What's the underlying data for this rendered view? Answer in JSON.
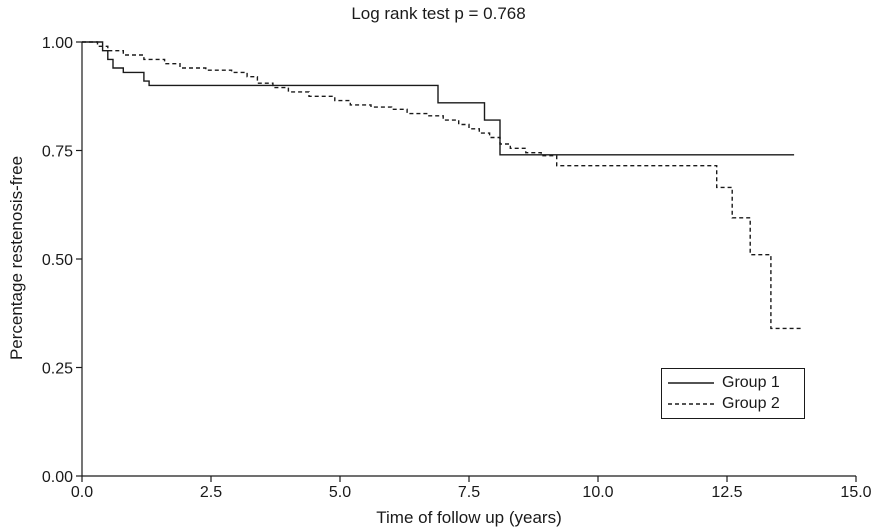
{
  "chart_data": {
    "type": "line",
    "title": "Log rank test p = 0.768",
    "xlabel": "Time of follow up (years)",
    "ylabel": "Percentage restenosis-free",
    "xlim": [
      0,
      15
    ],
    "ylim": [
      0,
      1
    ],
    "xticks": [
      "0.0",
      "2.5",
      "5.0",
      "7.5",
      "10.0",
      "12.5",
      "15.0"
    ],
    "xtick_values": [
      0,
      2.5,
      5,
      7.5,
      10,
      12.5,
      15
    ],
    "yticks": [
      "0.00",
      "0.25",
      "0.50",
      "0.75",
      "1.00"
    ],
    "ytick_values": [
      0,
      0.25,
      0.5,
      0.75,
      1
    ],
    "grid": false,
    "legend_position": "bottom-right",
    "step": true,
    "series": [
      {
        "name": "Group 1",
        "style": "solid",
        "points": [
          [
            0.0,
            1.0
          ],
          [
            0.4,
            0.98
          ],
          [
            0.5,
            0.96
          ],
          [
            0.6,
            0.94
          ],
          [
            0.8,
            0.93
          ],
          [
            1.2,
            0.91
          ],
          [
            1.3,
            0.9
          ],
          [
            6.9,
            0.9
          ],
          [
            6.9,
            0.86
          ],
          [
            7.8,
            0.86
          ],
          [
            7.8,
            0.82
          ],
          [
            8.1,
            0.82
          ],
          [
            8.1,
            0.74
          ],
          [
            13.8,
            0.74
          ]
        ]
      },
      {
        "name": "Group 2",
        "style": "dashed",
        "points": [
          [
            0.0,
            1.0
          ],
          [
            0.3,
            0.99
          ],
          [
            0.5,
            0.98
          ],
          [
            0.8,
            0.97
          ],
          [
            1.2,
            0.96
          ],
          [
            1.6,
            0.95
          ],
          [
            1.9,
            0.94
          ],
          [
            2.4,
            0.935
          ],
          [
            2.9,
            0.93
          ],
          [
            3.2,
            0.92
          ],
          [
            3.4,
            0.905
          ],
          [
            3.7,
            0.895
          ],
          [
            4.0,
            0.885
          ],
          [
            4.4,
            0.875
          ],
          [
            4.9,
            0.865
          ],
          [
            5.2,
            0.855
          ],
          [
            5.6,
            0.85
          ],
          [
            6.0,
            0.845
          ],
          [
            6.3,
            0.835
          ],
          [
            6.7,
            0.83
          ],
          [
            7.0,
            0.82
          ],
          [
            7.3,
            0.81
          ],
          [
            7.5,
            0.8
          ],
          [
            7.7,
            0.79
          ],
          [
            7.9,
            0.78
          ],
          [
            8.1,
            0.765
          ],
          [
            8.3,
            0.755
          ],
          [
            8.6,
            0.745
          ],
          [
            8.9,
            0.738
          ],
          [
            9.2,
            0.725
          ],
          [
            9.2,
            0.715
          ],
          [
            12.3,
            0.715
          ],
          [
            12.3,
            0.665
          ],
          [
            12.6,
            0.665
          ],
          [
            12.6,
            0.595
          ],
          [
            12.95,
            0.595
          ],
          [
            12.95,
            0.51
          ],
          [
            13.35,
            0.51
          ],
          [
            13.35,
            0.34
          ],
          [
            13.95,
            0.34
          ]
        ]
      }
    ]
  }
}
